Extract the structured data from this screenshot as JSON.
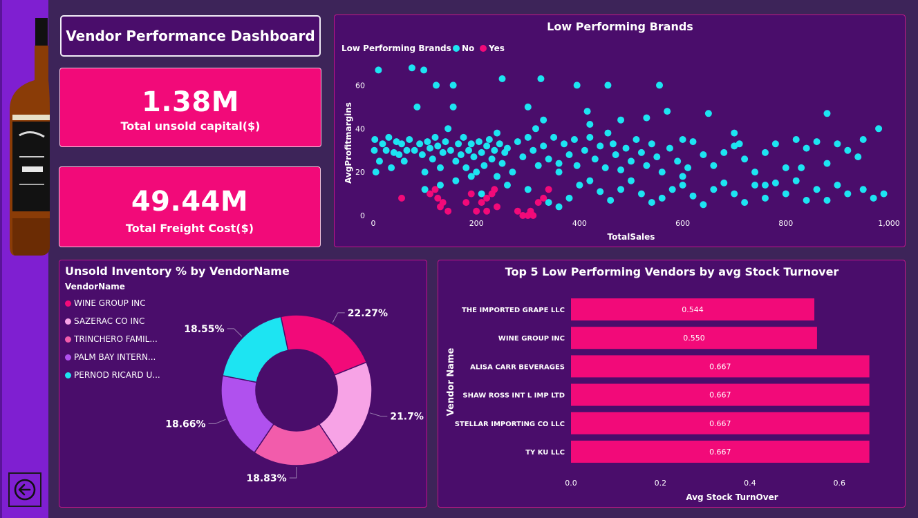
{
  "dashboard": {
    "title": "Vendor Performance Dashboard",
    "kpis": [
      {
        "value": "1.38M",
        "label": "Total unsold capital($)"
      },
      {
        "value": "49.44M",
        "label": "Total Freight Cost($)"
      }
    ]
  },
  "colors": {
    "pink": "#f20a79",
    "cyan": "#1de4f2",
    "panel": "#4a0d6b",
    "background": "#3d2459",
    "strip": "#7f1fd1"
  },
  "icons": {
    "back": "arrow-left-circle-icon",
    "bottle": "whiskey-bottle-icon"
  },
  "chart_data": [
    {
      "type": "scatter",
      "title": "Low Performing Brands",
      "xlabel": "TotalSales",
      "ylabel": "AvgProfitmargins",
      "xlim": [
        0,
        1000
      ],
      "ylim": [
        0,
        70
      ],
      "x_ticks": [
        "0",
        "200",
        "400",
        "600",
        "800",
        "1,000"
      ],
      "y_ticks": [
        "0",
        "20",
        "40",
        "60"
      ],
      "legend_title": "Low Performing Brands",
      "legend_position": "top-left",
      "series": [
        {
          "name": "No",
          "color": "#1de4f2",
          "points": [
            [
              10,
              67
            ],
            [
              75,
              68
            ],
            [
              98,
              67
            ],
            [
              122,
              60
            ],
            [
              85,
              50
            ],
            [
              155,
              60
            ],
            [
              155,
              50
            ],
            [
              250,
              63
            ],
            [
              325,
              63
            ],
            [
              395,
              60
            ],
            [
              455,
              60
            ],
            [
              555,
              60
            ],
            [
              415,
              48
            ],
            [
              300,
              50
            ],
            [
              530,
              45
            ],
            [
              570,
              48
            ],
            [
              650,
              47
            ],
            [
              880,
              47
            ],
            [
              2,
              30
            ],
            [
              3,
              35
            ],
            [
              5,
              20
            ],
            [
              12,
              25
            ],
            [
              18,
              33
            ],
            [
              25,
              30
            ],
            [
              30,
              36
            ],
            [
              35,
              22
            ],
            [
              40,
              29
            ],
            [
              45,
              34
            ],
            [
              50,
              28
            ],
            [
              55,
              33
            ],
            [
              60,
              25
            ],
            [
              65,
              30
            ],
            [
              70,
              35
            ],
            [
              80,
              30
            ],
            [
              90,
              33
            ],
            [
              95,
              28
            ],
            [
              100,
              20
            ],
            [
              105,
              34
            ],
            [
              110,
              31
            ],
            [
              115,
              26
            ],
            [
              120,
              36
            ],
            [
              125,
              32
            ],
            [
              130,
              22
            ],
            [
              135,
              29
            ],
            [
              140,
              34
            ],
            [
              145,
              40
            ],
            [
              150,
              30
            ],
            [
              160,
              25
            ],
            [
              165,
              33
            ],
            [
              170,
              28
            ],
            [
              175,
              36
            ],
            [
              180,
              22
            ],
            [
              185,
              30
            ],
            [
              190,
              33
            ],
            [
              195,
              27
            ],
            [
              200,
              20
            ],
            [
              205,
              34
            ],
            [
              210,
              29
            ],
            [
              215,
              23
            ],
            [
              220,
              32
            ],
            [
              225,
              35
            ],
            [
              230,
              26
            ],
            [
              235,
              30
            ],
            [
              240,
              18
            ],
            [
              245,
              33
            ],
            [
              250,
              24
            ],
            [
              255,
              29
            ],
            [
              260,
              31
            ],
            [
              270,
              20
            ],
            [
              280,
              34
            ],
            [
              290,
              27
            ],
            [
              300,
              36
            ],
            [
              310,
              30
            ],
            [
              315,
              40
            ],
            [
              320,
              23
            ],
            [
              330,
              32
            ],
            [
              340,
              26
            ],
            [
              350,
              36
            ],
            [
              360,
              20
            ],
            [
              370,
              33
            ],
            [
              380,
              28
            ],
            [
              390,
              35
            ],
            [
              395,
              23
            ],
            [
              410,
              30
            ],
            [
              420,
              36
            ],
            [
              430,
              26
            ],
            [
              440,
              32
            ],
            [
              450,
              22
            ],
            [
              455,
              38
            ],
            [
              465,
              33
            ],
            [
              470,
              28
            ],
            [
              480,
              21
            ],
            [
              490,
              31
            ],
            [
              500,
              25
            ],
            [
              510,
              35
            ],
            [
              520,
              29
            ],
            [
              530,
              23
            ],
            [
              540,
              33
            ],
            [
              550,
              27
            ],
            [
              560,
              20
            ],
            [
              575,
              31
            ],
            [
              590,
              25
            ],
            [
              600,
              35
            ],
            [
              610,
              22
            ],
            [
              620,
              34
            ],
            [
              640,
              28
            ],
            [
              660,
              23
            ],
            [
              680,
              29
            ],
            [
              700,
              32
            ],
            [
              710,
              33
            ],
            [
              720,
              26
            ],
            [
              740,
              20
            ],
            [
              760,
              29
            ],
            [
              780,
              33
            ],
            [
              800,
              22
            ],
            [
              820,
              35
            ],
            [
              840,
              31
            ],
            [
              860,
              34
            ],
            [
              880,
              24
            ],
            [
              900,
              33
            ],
            [
              920,
              30
            ],
            [
              950,
              35
            ],
            [
              980,
              40
            ],
            [
              100,
              12
            ],
            [
              130,
              14
            ],
            [
              160,
              16
            ],
            [
              190,
              18
            ],
            [
              210,
              10
            ],
            [
              260,
              14
            ],
            [
              300,
              12
            ],
            [
              340,
              6
            ],
            [
              360,
              4
            ],
            [
              380,
              8
            ],
            [
              400,
              14
            ],
            [
              420,
              16
            ],
            [
              440,
              11
            ],
            [
              460,
              7
            ],
            [
              480,
              12
            ],
            [
              500,
              16
            ],
            [
              520,
              10
            ],
            [
              540,
              6
            ],
            [
              560,
              8
            ],
            [
              580,
              12
            ],
            [
              600,
              14
            ],
            [
              620,
              9
            ],
            [
              640,
              5
            ],
            [
              660,
              12
            ],
            [
              680,
              15
            ],
            [
              700,
              10
            ],
            [
              720,
              6
            ],
            [
              740,
              14
            ],
            [
              760,
              8
            ],
            [
              780,
              15
            ],
            [
              800,
              10
            ],
            [
              820,
              16
            ],
            [
              840,
              7
            ],
            [
              860,
              12
            ],
            [
              880,
              7
            ],
            [
              900,
              14
            ],
            [
              920,
              10
            ],
            [
              950,
              12
            ],
            [
              970,
              8
            ],
            [
              990,
              10
            ],
            [
              420,
              42
            ],
            [
              360,
              24
            ],
            [
              240,
              38
            ],
            [
              600,
              18
            ],
            [
              480,
              44
            ],
            [
              330,
              44
            ],
            [
              700,
              38
            ],
            [
              760,
              14
            ],
            [
              830,
              22
            ],
            [
              940,
              27
            ]
          ]
        },
        {
          "name": "Yes",
          "color": "#f20a79",
          "points": [
            [
              55,
              8
            ],
            [
              110,
              10
            ],
            [
              120,
              12
            ],
            [
              125,
              8
            ],
            [
              130,
              4
            ],
            [
              135,
              6
            ],
            [
              145,
              2
            ],
            [
              190,
              10
            ],
            [
              200,
              2
            ],
            [
              210,
              6
            ],
            [
              220,
              8
            ],
            [
              230,
              10
            ],
            [
              235,
              12
            ],
            [
              240,
              4
            ],
            [
              280,
              2
            ],
            [
              290,
              0
            ],
            [
              300,
              0
            ],
            [
              305,
              2
            ],
            [
              310,
              0
            ],
            [
              320,
              6
            ],
            [
              330,
              8
            ],
            [
              340,
              12
            ],
            [
              220,
              2
            ],
            [
              180,
              6
            ]
          ]
        }
      ]
    },
    {
      "type": "pie",
      "title": "Unsold Inventory % by VendorName",
      "legend_title": "VendorName",
      "legend_position": "left",
      "slices": [
        {
          "label": "WINE GROUP INC",
          "value": 22.27,
          "display": "22.27%",
          "color": "#f20a79"
        },
        {
          "label": "SAZERAC CO INC",
          "value": 21.7,
          "display": "21.7%",
          "color": "#f7a3e6"
        },
        {
          "label": "TRINCHERO FAMIL...",
          "value": 18.83,
          "display": "18.83%",
          "color": "#f25cab"
        },
        {
          "label": "PALM BAY INTERN...",
          "value": 18.66,
          "display": "18.66%",
          "color": "#b051ee"
        },
        {
          "label": "PERNOD RICARD U...",
          "value": 18.55,
          "display": "18.55%",
          "color": "#1de4f2"
        }
      ]
    },
    {
      "type": "bar",
      "orientation": "horizontal",
      "title": "Top 5 Low Performing Vendors by avg Stock Turnover",
      "xlabel": "Avg Stock TurnOver",
      "ylabel": "Vendor Name",
      "xlim": [
        0,
        0.7
      ],
      "x_ticks": [
        "0.0",
        "0.2",
        "0.4",
        "0.6"
      ],
      "categories": [
        "THE IMPORTED GRAPE LLC",
        "WINE GROUP INC",
        "ALISA CARR BEVERAGES",
        "SHAW ROSS INT L IMP LTD",
        "STELLAR IMPORTING CO LLC",
        "TY KU LLC"
      ],
      "values": [
        0.544,
        0.55,
        0.667,
        0.667,
        0.667,
        0.667
      ],
      "labels": [
        "0.544",
        "0.550",
        "0.667",
        "0.667",
        "0.667",
        "0.667"
      ],
      "color": "#f20a79"
    }
  ]
}
